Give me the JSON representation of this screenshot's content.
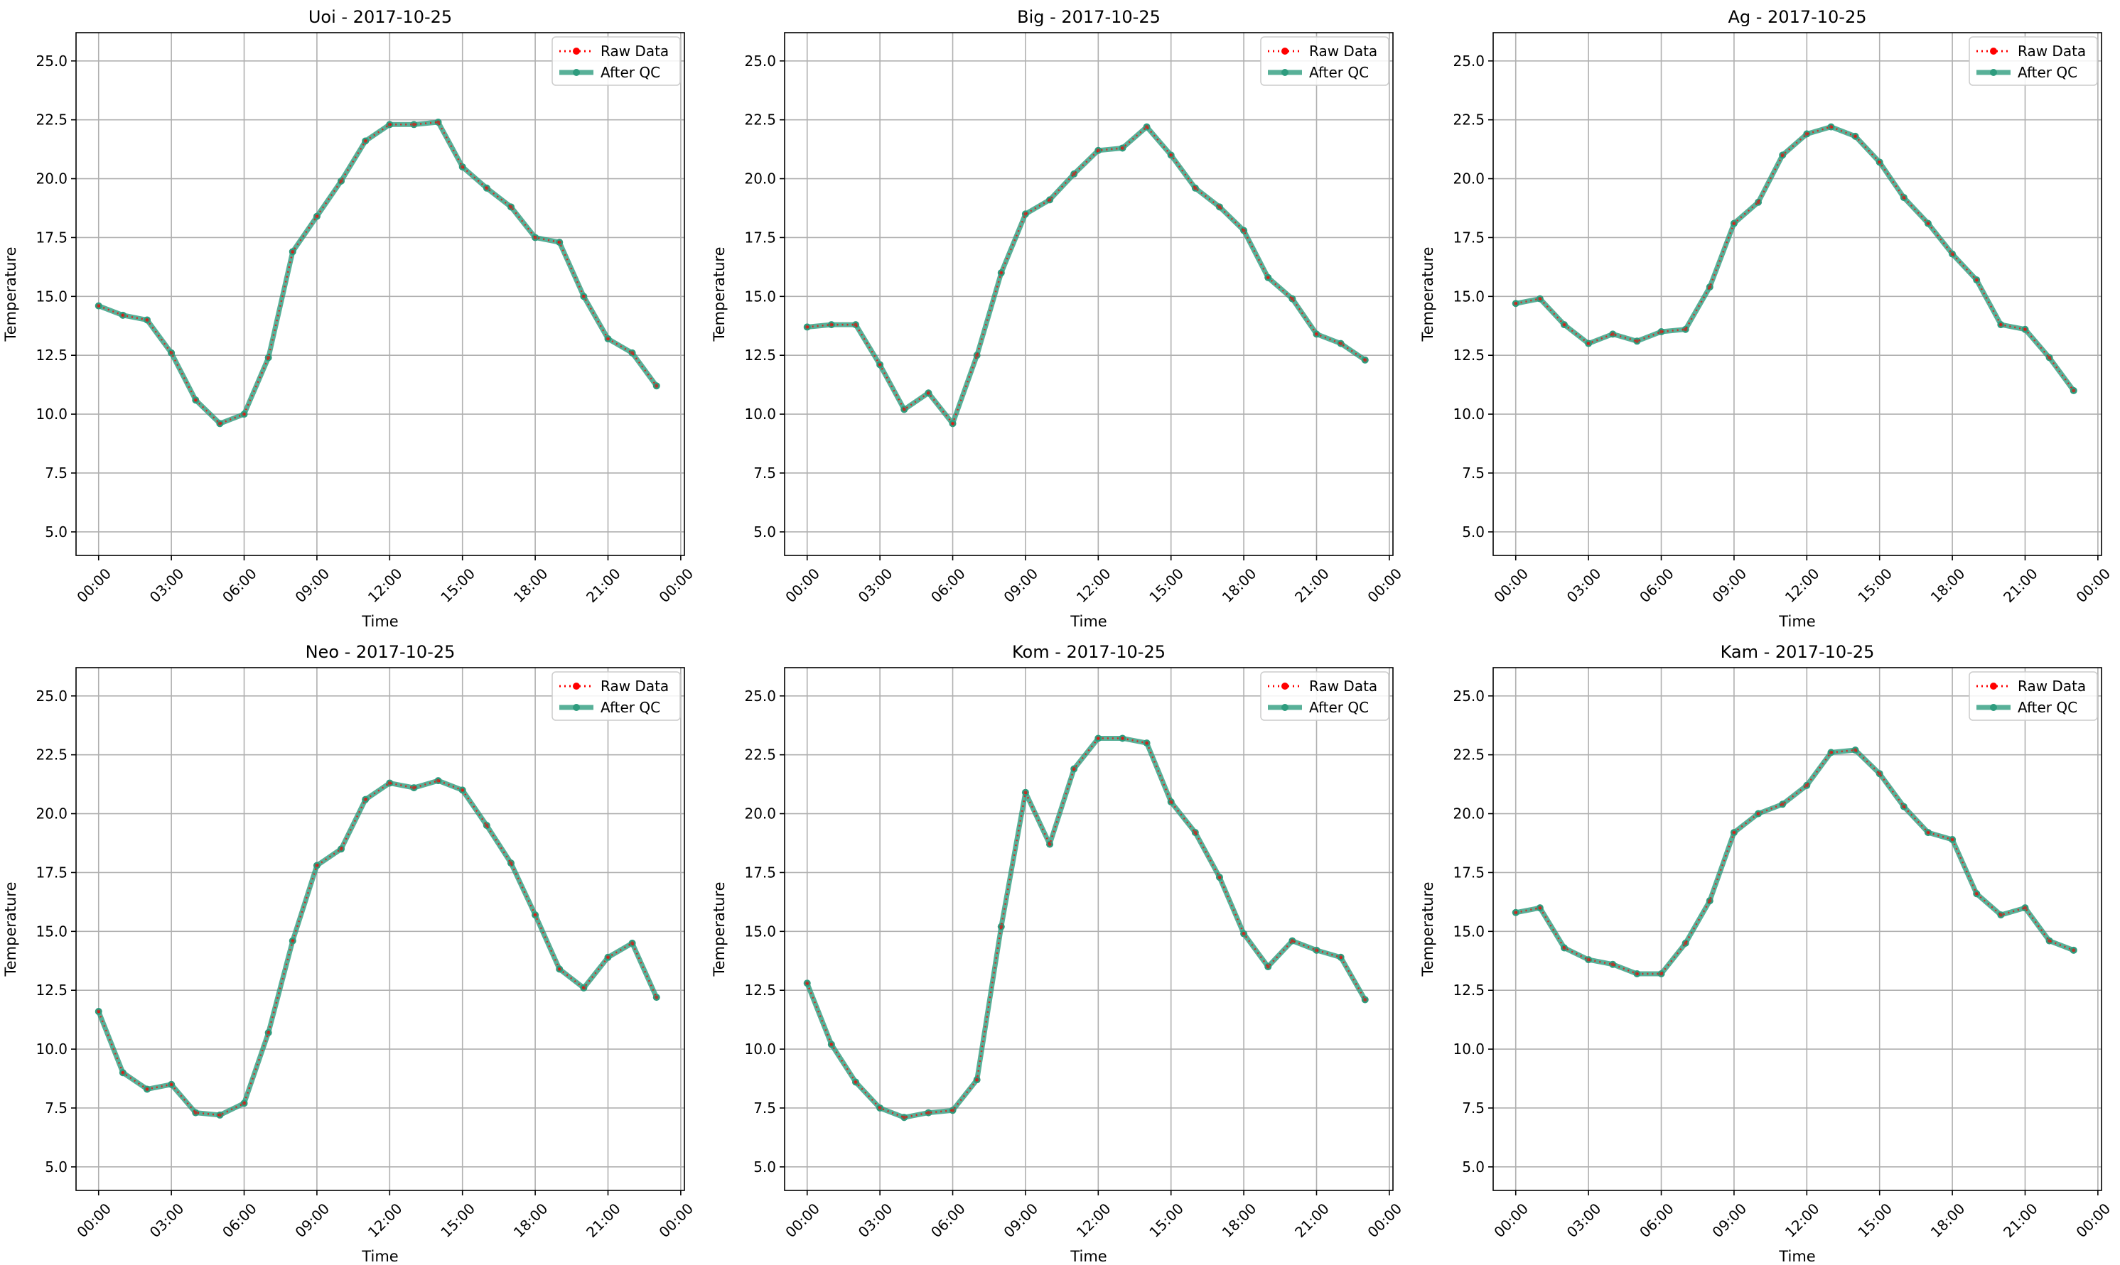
{
  "chart_data": [
    {
      "type": "line",
      "title": "Uoi - 2017-10-25",
      "xlabel": "Time",
      "ylabel": "Temperature",
      "x_ticks": [
        "00:00",
        "03:00",
        "06:00",
        "09:00",
        "12:00",
        "15:00",
        "18:00",
        "21:00",
        "00:00"
      ],
      "y_ticks": [
        "5.0",
        "7.5",
        "10.0",
        "12.5",
        "15.0",
        "17.5",
        "20.0",
        "22.5",
        "25.0"
      ],
      "ylim": [
        4.0,
        26.2
      ],
      "grid": true,
      "legend_position": "top-right",
      "legend": [
        "Raw Data",
        "After QC"
      ],
      "series": [
        {
          "name": "Raw Data",
          "color": "#ff0000",
          "style": "dotted",
          "values": [
            14.6,
            14.2,
            14.0,
            12.6,
            10.6,
            9.6,
            10.0,
            12.4,
            16.9,
            18.4,
            19.9,
            21.6,
            22.3,
            22.3,
            22.4,
            20.5,
            19.6,
            18.8,
            17.5,
            17.3,
            15.0,
            13.2,
            12.6,
            11.2
          ]
        },
        {
          "name": "After QC",
          "color": "#2e9c7e",
          "style": "solid",
          "values": [
            14.6,
            14.2,
            14.0,
            12.6,
            10.6,
            9.6,
            10.0,
            12.4,
            16.9,
            18.4,
            19.9,
            21.6,
            22.3,
            22.3,
            22.4,
            20.5,
            19.6,
            18.8,
            17.5,
            17.3,
            15.0,
            13.2,
            12.6,
            11.2
          ]
        }
      ]
    },
    {
      "type": "line",
      "title": "Big - 2017-10-25",
      "xlabel": "Time",
      "ylabel": "Temperature",
      "x_ticks": [
        "00:00",
        "03:00",
        "06:00",
        "09:00",
        "12:00",
        "15:00",
        "18:00",
        "21:00",
        "00:00"
      ],
      "y_ticks": [
        "5.0",
        "7.5",
        "10.0",
        "12.5",
        "15.0",
        "17.5",
        "20.0",
        "22.5",
        "25.0"
      ],
      "ylim": [
        4.0,
        26.2
      ],
      "grid": true,
      "legend_position": "top-right",
      "legend": [
        "Raw Data",
        "After QC"
      ],
      "series": [
        {
          "name": "Raw Data",
          "color": "#ff0000",
          "style": "dotted",
          "values": [
            13.7,
            13.8,
            13.8,
            12.1,
            10.2,
            10.9,
            9.6,
            12.5,
            16.0,
            18.5,
            19.1,
            20.2,
            21.2,
            21.3,
            22.2,
            21.0,
            19.6,
            18.8,
            17.8,
            15.8,
            14.9,
            13.4,
            13.0,
            12.3
          ]
        },
        {
          "name": "After QC",
          "color": "#2e9c7e",
          "style": "solid",
          "values": [
            13.7,
            13.8,
            13.8,
            12.1,
            10.2,
            10.9,
            9.6,
            12.5,
            16.0,
            18.5,
            19.1,
            20.2,
            21.2,
            21.3,
            22.2,
            21.0,
            19.6,
            18.8,
            17.8,
            15.8,
            14.9,
            13.4,
            13.0,
            12.3
          ]
        }
      ]
    },
    {
      "type": "line",
      "title": "Ag - 2017-10-25",
      "xlabel": "Time",
      "ylabel": "Temperature",
      "x_ticks": [
        "00:00",
        "03:00",
        "06:00",
        "09:00",
        "12:00",
        "15:00",
        "18:00",
        "21:00",
        "00:00"
      ],
      "y_ticks": [
        "5.0",
        "7.5",
        "10.0",
        "12.5",
        "15.0",
        "17.5",
        "20.0",
        "22.5",
        "25.0"
      ],
      "ylim": [
        4.0,
        26.2
      ],
      "grid": true,
      "legend_position": "top-right",
      "legend": [
        "Raw Data",
        "After QC"
      ],
      "series": [
        {
          "name": "Raw Data",
          "color": "#ff0000",
          "style": "dotted",
          "values": [
            14.7,
            14.9,
            13.8,
            13.0,
            13.4,
            13.1,
            13.5,
            13.6,
            15.4,
            18.1,
            19.0,
            21.0,
            21.9,
            22.2,
            21.8,
            20.7,
            19.2,
            18.1,
            16.8,
            15.7,
            13.8,
            13.6,
            12.4,
            11.0
          ]
        },
        {
          "name": "After QC",
          "color": "#2e9c7e",
          "style": "solid",
          "values": [
            14.7,
            14.9,
            13.8,
            13.0,
            13.4,
            13.1,
            13.5,
            13.6,
            15.4,
            18.1,
            19.0,
            21.0,
            21.9,
            22.2,
            21.8,
            20.7,
            19.2,
            18.1,
            16.8,
            15.7,
            13.8,
            13.6,
            12.4,
            11.0
          ]
        }
      ]
    },
    {
      "type": "line",
      "title": "Neo - 2017-10-25",
      "xlabel": "Time",
      "ylabel": "Temperature",
      "x_ticks": [
        "00:00",
        "03:00",
        "06:00",
        "09:00",
        "12:00",
        "15:00",
        "18:00",
        "21:00",
        "00:00"
      ],
      "y_ticks": [
        "5.0",
        "7.5",
        "10.0",
        "12.5",
        "15.0",
        "17.5",
        "20.0",
        "22.5",
        "25.0"
      ],
      "ylim": [
        4.0,
        26.2
      ],
      "grid": true,
      "legend_position": "top-right",
      "legend": [
        "Raw Data",
        "After QC"
      ],
      "series": [
        {
          "name": "Raw Data",
          "color": "#ff0000",
          "style": "dotted",
          "values": [
            11.6,
            9.0,
            8.3,
            8.5,
            7.3,
            7.2,
            7.7,
            10.7,
            14.6,
            17.8,
            18.5,
            20.6,
            21.3,
            21.1,
            21.4,
            21.0,
            19.5,
            17.9,
            15.7,
            13.4,
            12.6,
            13.9,
            14.5,
            12.2
          ]
        },
        {
          "name": "After QC",
          "color": "#2e9c7e",
          "style": "solid",
          "values": [
            11.6,
            9.0,
            8.3,
            8.5,
            7.3,
            7.2,
            7.7,
            10.7,
            14.6,
            17.8,
            18.5,
            20.6,
            21.3,
            21.1,
            21.4,
            21.0,
            19.5,
            17.9,
            15.7,
            13.4,
            12.6,
            13.9,
            14.5,
            12.2
          ]
        }
      ]
    },
    {
      "type": "line",
      "title": "Kom - 2017-10-25",
      "xlabel": "Time",
      "ylabel": "Temperature",
      "x_ticks": [
        "00:00",
        "03:00",
        "06:00",
        "09:00",
        "12:00",
        "15:00",
        "18:00",
        "21:00",
        "00:00"
      ],
      "y_ticks": [
        "5.0",
        "7.5",
        "10.0",
        "12.5",
        "15.0",
        "17.5",
        "20.0",
        "22.5",
        "25.0"
      ],
      "ylim": [
        4.0,
        26.2
      ],
      "grid": true,
      "legend_position": "top-right",
      "legend": [
        "Raw Data",
        "After QC"
      ],
      "series": [
        {
          "name": "Raw Data",
          "color": "#ff0000",
          "style": "dotted",
          "values": [
            12.8,
            10.2,
            8.6,
            7.5,
            7.1,
            7.3,
            7.4,
            8.7,
            15.2,
            20.9,
            18.7,
            21.9,
            23.2,
            23.2,
            23.0,
            20.5,
            19.2,
            17.3,
            14.9,
            13.5,
            14.6,
            14.2,
            13.9,
            12.1
          ]
        },
        {
          "name": "After QC",
          "color": "#2e9c7e",
          "style": "solid",
          "values": [
            12.8,
            10.2,
            8.6,
            7.5,
            7.1,
            7.3,
            7.4,
            8.7,
            15.2,
            20.9,
            18.7,
            21.9,
            23.2,
            23.2,
            23.0,
            20.5,
            19.2,
            17.3,
            14.9,
            13.5,
            14.6,
            14.2,
            13.9,
            12.1
          ]
        }
      ]
    },
    {
      "type": "line",
      "title": "Kam - 2017-10-25",
      "xlabel": "Time",
      "ylabel": "Temperature",
      "x_ticks": [
        "00:00",
        "03:00",
        "06:00",
        "09:00",
        "12:00",
        "15:00",
        "18:00",
        "21:00",
        "00:00"
      ],
      "y_ticks": [
        "5.0",
        "7.5",
        "10.0",
        "12.5",
        "15.0",
        "17.5",
        "20.0",
        "22.5",
        "25.0"
      ],
      "ylim": [
        4.0,
        26.2
      ],
      "grid": true,
      "legend_position": "top-right",
      "legend": [
        "Raw Data",
        "After QC"
      ],
      "series": [
        {
          "name": "Raw Data",
          "color": "#ff0000",
          "style": "dotted",
          "values": [
            15.8,
            16.0,
            14.3,
            13.8,
            13.6,
            13.2,
            13.2,
            14.5,
            16.3,
            19.2,
            20.0,
            20.4,
            21.2,
            22.6,
            22.7,
            21.7,
            20.3,
            19.2,
            18.9,
            16.6,
            15.7,
            16.0,
            14.6,
            14.2
          ]
        },
        {
          "name": "After QC",
          "color": "#2e9c7e",
          "style": "solid",
          "values": [
            15.8,
            16.0,
            14.3,
            13.8,
            13.6,
            13.2,
            13.2,
            14.5,
            16.3,
            19.2,
            20.0,
            20.4,
            21.2,
            22.6,
            22.7,
            21.7,
            20.3,
            19.2,
            18.9,
            16.6,
            15.7,
            16.0,
            14.6,
            14.2
          ]
        }
      ]
    }
  ]
}
